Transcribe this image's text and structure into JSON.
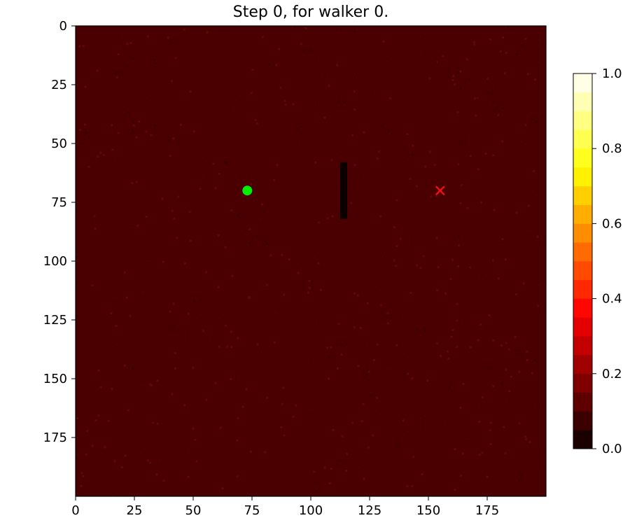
{
  "chart_data": {
    "type": "heatmap",
    "title": "Step 0, for walker 0.",
    "xlabel": "",
    "ylabel": "",
    "grid": false,
    "xlim": [
      0,
      200
    ],
    "ylim": [
      200,
      0
    ],
    "xticks": [
      0,
      25,
      50,
      75,
      100,
      125,
      150,
      175
    ],
    "yticks": [
      0,
      25,
      50,
      75,
      100,
      125,
      150,
      175
    ],
    "colormap": "hot",
    "background_value": 0.1,
    "background_color": "#4a0000",
    "colorbar": {
      "range": [
        0,
        1
      ],
      "levels": 20,
      "ticks": [
        "0.0",
        "0.2",
        "0.4",
        "0.6",
        "0.8",
        "1.0"
      ]
    },
    "start_marker": {
      "shape": "circle",
      "x": 73,
      "y": 70,
      "color": "#00ee00"
    },
    "goal_marker": {
      "shape": "x",
      "x": 155,
      "y": 70,
      "color": "#ee1111"
    },
    "obstacle": {
      "x": 114,
      "y_start": 58,
      "y_end": 82,
      "value": 0.0
    }
  }
}
